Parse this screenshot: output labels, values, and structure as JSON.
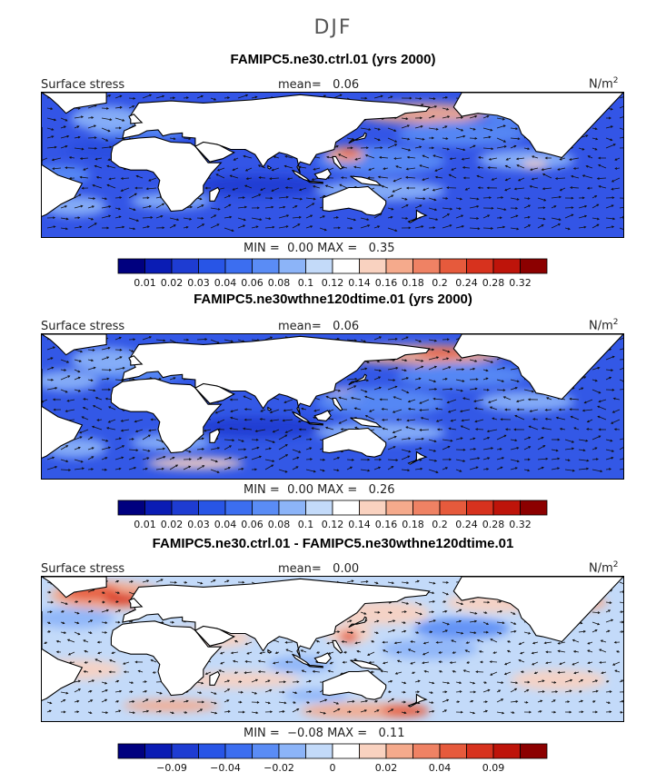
{
  "figure": {
    "suptitle": "DJF"
  },
  "panels": [
    {
      "title": "FAMIPC5.ne30.ctrl.01 (yrs 2000)",
      "left_label": "Surface stress",
      "mean_label": "mean=",
      "mean_value": "0.06",
      "units": "N/m",
      "units_sup": "2",
      "min_label": "MIN =",
      "min_value": "0.00",
      "max_label": "MAX =",
      "max_value": "0.35"
    },
    {
      "title": "FAMIPC5.ne30wthne120dtime.01 (yrs 2000)",
      "left_label": "Surface stress",
      "mean_label": "mean=",
      "mean_value": "0.06",
      "units": "N/m",
      "units_sup": "2",
      "min_label": "MIN =",
      "min_value": "0.00",
      "max_label": "MAX =",
      "max_value": "0.26"
    },
    {
      "title": "FAMIPC5.ne30.ctrl.01 - FAMIPC5.ne30wthne120dtime.01",
      "left_label": "Surface stress",
      "mean_label": "mean=",
      "mean_value": "0.00",
      "units": "N/m",
      "units_sup": "2",
      "min_label": "MIN =",
      "min_value": "−0.08",
      "max_label": "MAX =",
      "max_value": "0.11"
    }
  ],
  "chart_data": [
    {
      "type": "heatmap",
      "title": "FAMIPC5.ne30.ctrl.01 (yrs 2000)",
      "variable": "Surface stress",
      "units": "N/m2",
      "mean": 0.06,
      "min": 0.0,
      "max": 0.35,
      "colorbar_levels": [
        0.01,
        0.02,
        0.03,
        0.04,
        0.06,
        0.08,
        0.1,
        0.12,
        0.14,
        0.16,
        0.18,
        0.2,
        0.24,
        0.28,
        0.32
      ],
      "colorbar_labels": [
        "0.01",
        "0.02",
        "0.03",
        "0.04",
        "0.06",
        "0.08",
        "0.1",
        "0.12",
        "0.14",
        "0.16",
        "0.18",
        "0.2",
        "0.24",
        "0.28",
        "0.32"
      ],
      "colors": [
        "#00007f",
        "#0a1cb4",
        "#1e3cd2",
        "#2855e6",
        "#3c6ef0",
        "#5a8cf5",
        "#8cb4f8",
        "#c3daf9",
        "#ffffff",
        "#f9d2c0",
        "#f5aa8c",
        "#ef8264",
        "#e65a3c",
        "#d7321e",
        "#be140a",
        "#8c0000"
      ]
    },
    {
      "type": "heatmap",
      "title": "FAMIPC5.ne30wthne120dtime.01 (yrs 2000)",
      "variable": "Surface stress",
      "units": "N/m2",
      "mean": 0.06,
      "min": 0.0,
      "max": 0.26,
      "colorbar_levels": [
        0.01,
        0.02,
        0.03,
        0.04,
        0.06,
        0.08,
        0.1,
        0.12,
        0.14,
        0.16,
        0.18,
        0.2,
        0.24,
        0.28,
        0.32
      ],
      "colorbar_labels": [
        "0.01",
        "0.02",
        "0.03",
        "0.04",
        "0.06",
        "0.08",
        "0.1",
        "0.12",
        "0.14",
        "0.16",
        "0.18",
        "0.2",
        "0.24",
        "0.28",
        "0.32"
      ],
      "colors": [
        "#00007f",
        "#0a1cb4",
        "#1e3cd2",
        "#2855e6",
        "#3c6ef0",
        "#5a8cf5",
        "#8cb4f8",
        "#c3daf9",
        "#ffffff",
        "#f9d2c0",
        "#f5aa8c",
        "#ef8264",
        "#e65a3c",
        "#d7321e",
        "#be140a",
        "#8c0000"
      ]
    },
    {
      "type": "heatmap",
      "title": "FAMIPC5.ne30.ctrl.01 - FAMIPC5.ne30wthne120dtime.01",
      "variable": "Surface stress",
      "units": "N/m2",
      "mean": 0.0,
      "min": -0.08,
      "max": 0.11,
      "colorbar_labels": [
        "−0.09",
        "−0.04",
        "−0.02",
        "0",
        "0.02",
        "0.04",
        "0.09"
      ],
      "colorbar_label_after_box": [
        1,
        3,
        5,
        7,
        9,
        11,
        13
      ],
      "colors": [
        "#00007f",
        "#0a1cb4",
        "#1e3cd2",
        "#2855e6",
        "#3c6ef0",
        "#5a8cf5",
        "#8cb4f8",
        "#c3daf9",
        "#ffffff",
        "#f9d2c0",
        "#f5aa8c",
        "#ef8264",
        "#e65a3c",
        "#d7321e",
        "#be140a",
        "#8c0000"
      ]
    }
  ]
}
